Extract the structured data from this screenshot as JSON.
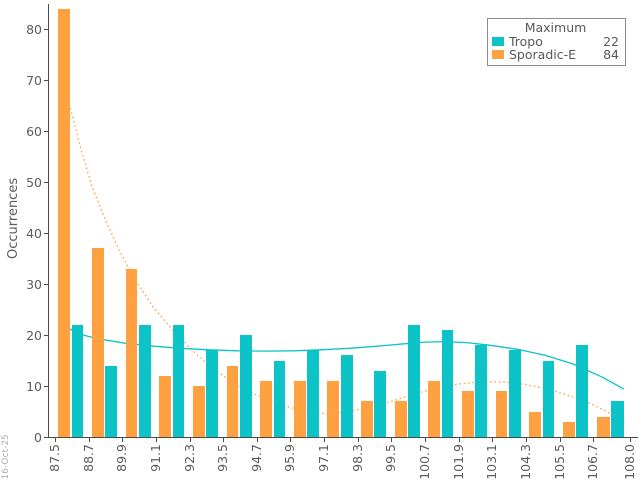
{
  "watermark": "16-Oct-25",
  "legend": {
    "title": "Maximum",
    "rows": [
      {
        "label": "Tropo",
        "value": "22",
        "color": "#0cc3c7"
      },
      {
        "label": "Sporadic-E",
        "value": "84",
        "color": "#ffa041"
      }
    ]
  },
  "chart_data": {
    "type": "bar",
    "title": "",
    "xlabel": "",
    "ylabel": "Occurrences",
    "grid": false,
    "legend_position": "top-right",
    "ylim": [
      0,
      85
    ],
    "y_ticks": [
      0,
      10,
      20,
      30,
      40,
      50,
      60,
      70,
      80
    ],
    "x_tick_labels": [
      "87.5",
      "88.7",
      "89.9",
      "91.1",
      "92.3",
      "93.5",
      "94.7",
      "95.9",
      "97.1",
      "98.3",
      "99.5",
      "100.7",
      "101.9",
      "103.1",
      "104.3",
      "105.5",
      "106.7",
      "108.0"
    ],
    "bin_edges": [
      87.5,
      88.7,
      89.9,
      91.1,
      92.3,
      93.5,
      94.7,
      95.9,
      97.1,
      98.3,
      99.5,
      100.7,
      101.9,
      103.1,
      104.3,
      105.5,
      106.7,
      108.0
    ],
    "series": [
      {
        "name": "Sporadic-E",
        "color": "#ffa041",
        "values": [
          84,
          37,
          33,
          12,
          10,
          14,
          11,
          11,
          11,
          7,
          7,
          11,
          9,
          9,
          5,
          3,
          4
        ]
      },
      {
        "name": "Tropo",
        "color": "#0cc3c7",
        "values": [
          22,
          14,
          22,
          22,
          17,
          20,
          15,
          17,
          16,
          13,
          22,
          21,
          18,
          17,
          15,
          18,
          7
        ]
      }
    ],
    "trend_lines": [
      {
        "name": "sporadic-e-trend",
        "color": "#ffa041",
        "style": "dotted",
        "points": [
          [
            88.05,
            64.5
          ],
          [
            88.4,
            57
          ],
          [
            88.8,
            49.5
          ],
          [
            89.3,
            42.5
          ],
          [
            89.8,
            36.5
          ],
          [
            90.4,
            30.5
          ],
          [
            91.0,
            25.5
          ],
          [
            91.7,
            21
          ],
          [
            92.4,
            17
          ],
          [
            93.1,
            13.5
          ],
          [
            93.9,
            10.5
          ],
          [
            94.7,
            8.2
          ],
          [
            95.5,
            6.4
          ],
          [
            96.3,
            5.2
          ],
          [
            97.1,
            4.6
          ],
          [
            97.9,
            4.9
          ],
          [
            98.7,
            5.8
          ],
          [
            99.5,
            7.0
          ],
          [
            100.3,
            8.4
          ],
          [
            101.1,
            9.6
          ],
          [
            101.9,
            10.4
          ],
          [
            102.7,
            10.8
          ],
          [
            103.5,
            10.8
          ],
          [
            104.3,
            10.3
          ],
          [
            105.1,
            9.4
          ],
          [
            105.9,
            8.0
          ],
          [
            106.7,
            6.3
          ],
          [
            107.4,
            4.4
          ],
          [
            107.9,
            2.6
          ]
        ]
      },
      {
        "name": "tropo-trend",
        "color": "#0cc3c7",
        "style": "solid",
        "points": [
          [
            87.9,
            21.6
          ],
          [
            88.3,
            20.3
          ],
          [
            89.0,
            19.3
          ],
          [
            90.0,
            18.4
          ],
          [
            91.0,
            17.8
          ],
          [
            92.0,
            17.4
          ],
          [
            93.0,
            17.1
          ],
          [
            94.0,
            16.9
          ],
          [
            95.0,
            16.85
          ],
          [
            96.0,
            16.9
          ],
          [
            97.0,
            17.1
          ],
          [
            98.0,
            17.4
          ],
          [
            99.0,
            17.8
          ],
          [
            100.0,
            18.3
          ],
          [
            100.7,
            18.6
          ],
          [
            101.4,
            18.7
          ],
          [
            102.2,
            18.5
          ],
          [
            103.0,
            18.0
          ],
          [
            104.0,
            17.2
          ],
          [
            105.0,
            16.0
          ],
          [
            106.0,
            14.3
          ],
          [
            107.0,
            11.8
          ],
          [
            107.8,
            9.4
          ]
        ]
      }
    ]
  }
}
